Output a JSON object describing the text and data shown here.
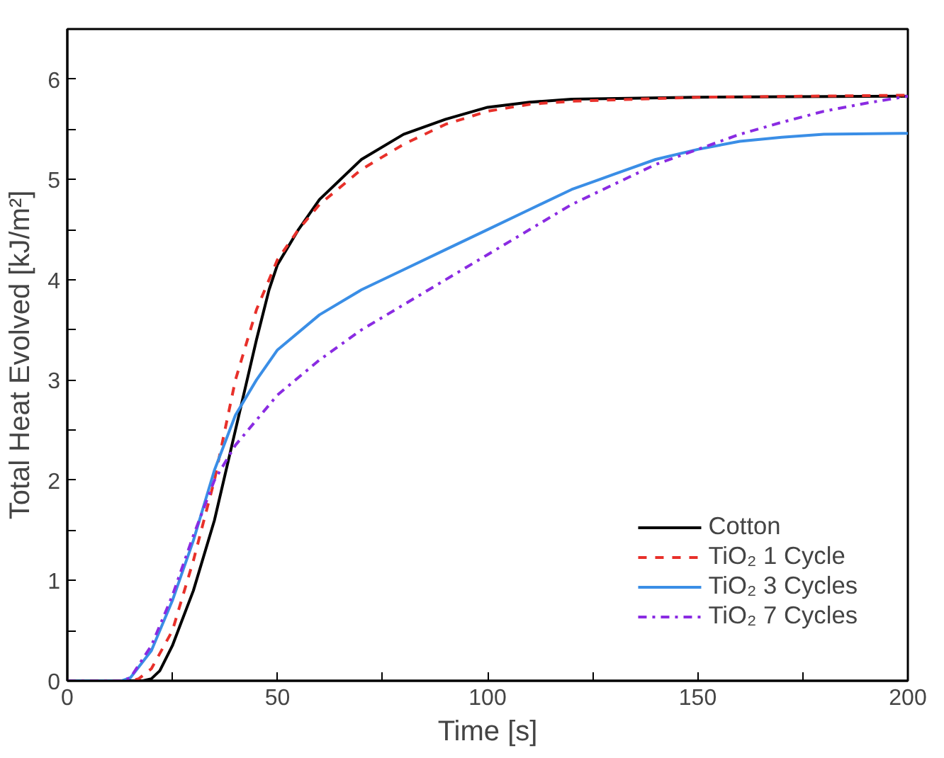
{
  "chart_data": {
    "type": "line",
    "xlabel": "Time [s]",
    "ylabel": "Total Heat Evolved [kJ/m²]",
    "xlim": [
      0,
      200
    ],
    "ylim": [
      0,
      6.5
    ],
    "xticks": [
      0,
      {
        "value": 25,
        "label": null
      },
      50,
      {
        "value": 75,
        "label": null
      },
      100,
      {
        "value": 125,
        "label": null
      },
      150,
      {
        "value": 175,
        "label": null
      },
      200
    ],
    "yticks": [
      0,
      {
        "value": 0.5,
        "label": null
      },
      1,
      {
        "value": 1.5,
        "label": null
      },
      2,
      {
        "value": 2.5,
        "label": null
      },
      3,
      {
        "value": 3.5,
        "label": null
      },
      4,
      {
        "value": 4.5,
        "label": null
      },
      5,
      {
        "value": 5.5,
        "label": null
      },
      6
    ],
    "legend": "bottom right",
    "grid": false,
    "series": [
      {
        "name": "Cotton",
        "color": "#000000",
        "line_style": "solid",
        "x": [
          0,
          18,
          20,
          22,
          25,
          30,
          35,
          40,
          45,
          48,
          50,
          55,
          60,
          70,
          80,
          90,
          100,
          110,
          120,
          150,
          200
        ],
        "values": [
          0,
          0,
          0.02,
          0.1,
          0.35,
          0.9,
          1.6,
          2.5,
          3.4,
          3.9,
          4.15,
          4.5,
          4.8,
          5.2,
          5.45,
          5.6,
          5.72,
          5.77,
          5.8,
          5.82,
          5.83
        ]
      },
      {
        "name": "TiO₂ 1 Cycle",
        "color": "#e8302a",
        "line_style": "dashed",
        "x": [
          0,
          15,
          17,
          20,
          25,
          30,
          35,
          40,
          45,
          50,
          55,
          60,
          70,
          80,
          90,
          100,
          110,
          120,
          150,
          200
        ],
        "values": [
          0,
          0,
          0.02,
          0.12,
          0.5,
          1.2,
          2.0,
          3.0,
          3.7,
          4.2,
          4.5,
          4.75,
          5.1,
          5.35,
          5.55,
          5.68,
          5.75,
          5.78,
          5.82,
          5.84
        ]
      },
      {
        "name": "TiO₂ 3 Cycles",
        "color": "#3a8ee6",
        "line_style": "solid",
        "x": [
          0,
          13,
          15,
          20,
          25,
          30,
          35,
          40,
          45,
          50,
          60,
          70,
          80,
          90,
          100,
          110,
          120,
          130,
          140,
          150,
          160,
          170,
          180,
          200
        ],
        "values": [
          0,
          0,
          0.03,
          0.3,
          0.8,
          1.4,
          2.1,
          2.65,
          3.0,
          3.3,
          3.65,
          3.9,
          4.1,
          4.3,
          4.5,
          4.7,
          4.9,
          5.05,
          5.2,
          5.3,
          5.38,
          5.42,
          5.45,
          5.46
        ]
      },
      {
        "name": "TiO₂ 7 Cycles",
        "color": "#8a2be2",
        "line_style": "dashdot",
        "x": [
          0,
          13,
          15,
          20,
          25,
          30,
          35,
          40,
          45,
          50,
          60,
          70,
          80,
          90,
          100,
          110,
          120,
          130,
          140,
          150,
          160,
          170,
          180,
          190,
          200
        ],
        "values": [
          0,
          0,
          0.03,
          0.35,
          0.85,
          1.45,
          2.0,
          2.35,
          2.6,
          2.85,
          3.2,
          3.5,
          3.75,
          4.0,
          4.25,
          4.5,
          4.75,
          4.95,
          5.15,
          5.3,
          5.45,
          5.57,
          5.68,
          5.76,
          5.83
        ]
      }
    ]
  }
}
